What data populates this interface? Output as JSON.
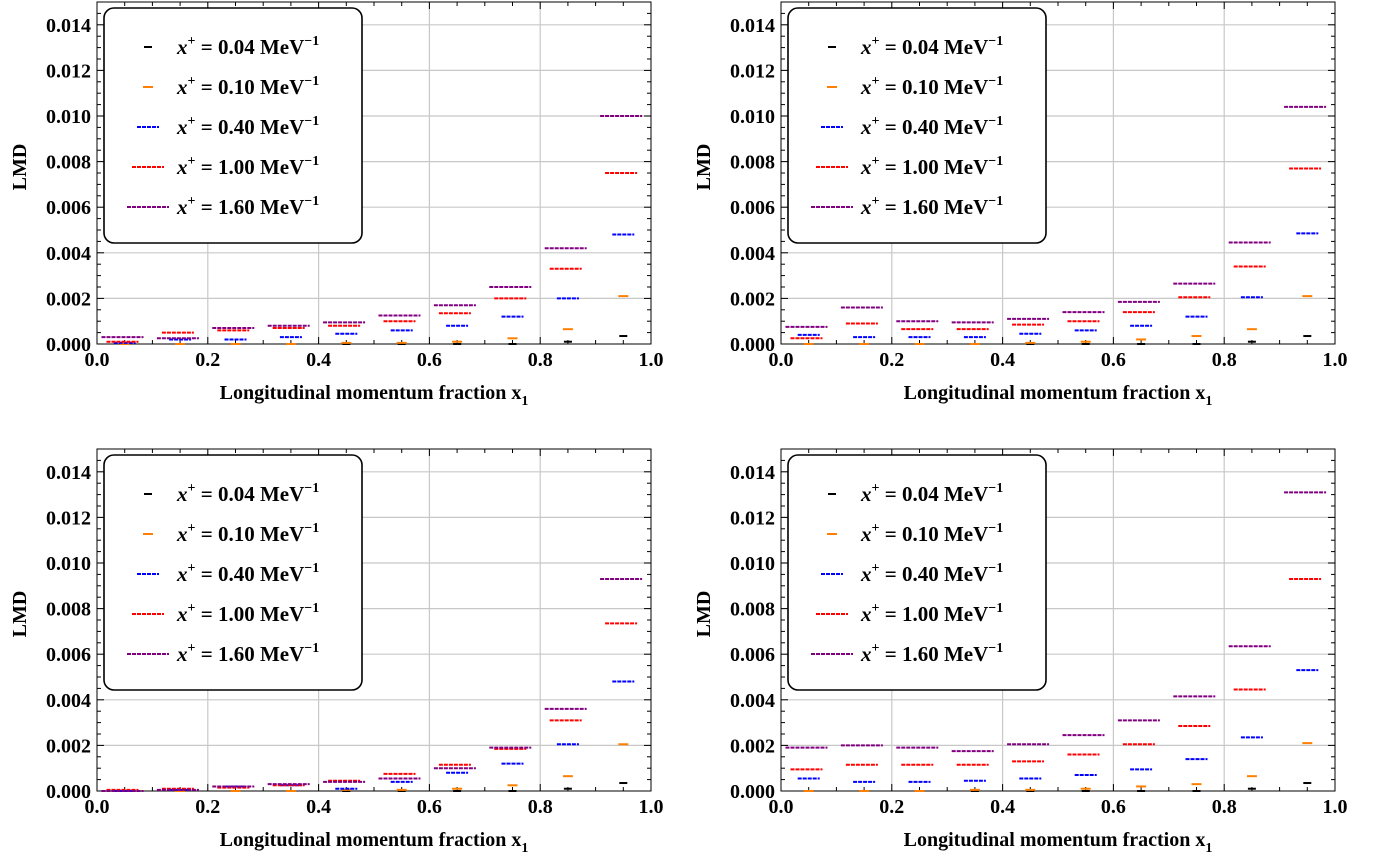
{
  "chart_data": [
    {
      "type": "scatter",
      "title": "",
      "xlabel": "Longitudinal momentum fraction x",
      "xlabel_sub": "1",
      "ylabel": "LMD",
      "xlim": [
        0,
        1
      ],
      "ylim": [
        0,
        0.015
      ],
      "xticks": [
        "0.0",
        "0.2",
        "0.4",
        "0.6",
        "0.8",
        "1.0"
      ],
      "yticks": [
        "0.000",
        "0.002",
        "0.004",
        "0.006",
        "0.008",
        "0.010",
        "0.012",
        "0.014"
      ],
      "grid": true,
      "legend_position": "top-left",
      "x": [
        0.05,
        0.15,
        0.25,
        0.35,
        0.45,
        0.55,
        0.65,
        0.75,
        0.85,
        0.95
      ],
      "series": [
        {
          "name": "x+ = 0.04 MeV-1",
          "color": "#000000",
          "values": [
            0.0,
            0.0,
            0.0,
            0.0,
            0.0,
            0.0,
            0.0,
            0.0,
            0.0001,
            0.00035
          ]
        },
        {
          "name": "x+ = 0.10 MeV-1",
          "color": "#ff8000",
          "values": [
            0.0,
            0.0,
            0.0,
            0.0,
            5e-05,
            5e-05,
            0.0001,
            0.00025,
            0.00065,
            0.0021
          ]
        },
        {
          "name": "x+ = 0.40 MeV-1",
          "color": "#0000ff",
          "values": [
            5e-05,
            0.0002,
            0.0002,
            0.0003,
            0.00045,
            0.0006,
            0.0008,
            0.0012,
            0.002,
            0.0048
          ]
        },
        {
          "name": "x+ = 1.00 MeV-1",
          "color": "#ff0000",
          "values": [
            0.0001,
            0.0005,
            0.0006,
            0.0007,
            0.0008,
            0.001,
            0.00135,
            0.002,
            0.0033,
            0.0075
          ]
        },
        {
          "name": "x+ = 1.60 MeV-1",
          "color": "#800080",
          "values": [
            0.0003,
            0.00025,
            0.0007,
            0.0008,
            0.00095,
            0.00125,
            0.0017,
            0.0025,
            0.0042,
            0.01
          ]
        }
      ]
    },
    {
      "type": "scatter",
      "title": "",
      "xlabel": "Longitudinal momentum fraction x",
      "xlabel_sub": "1",
      "ylabel": "LMD",
      "xlim": [
        0,
        1
      ],
      "ylim": [
        0,
        0.015
      ],
      "xticks": [
        "0.0",
        "0.2",
        "0.4",
        "0.6",
        "0.8",
        "1.0"
      ],
      "yticks": [
        "0.000",
        "0.002",
        "0.004",
        "0.006",
        "0.008",
        "0.010",
        "0.012",
        "0.014"
      ],
      "grid": true,
      "legend_position": "top-left",
      "x": [
        0.05,
        0.15,
        0.25,
        0.35,
        0.45,
        0.55,
        0.65,
        0.75,
        0.85,
        0.95
      ],
      "series": [
        {
          "name": "x+ = 0.04 MeV-1",
          "color": "#000000",
          "values": [
            0.0,
            0.0,
            0.0,
            0.0,
            0.0,
            0.0,
            0.0,
            0.0,
            0.0001,
            0.00035
          ]
        },
        {
          "name": "x+ = 0.10 MeV-1",
          "color": "#ff8000",
          "values": [
            0.0,
            0.0,
            0.0,
            0.0,
            5e-05,
            0.0001,
            0.0002,
            0.00035,
            0.00065,
            0.0021
          ]
        },
        {
          "name": "x+ = 0.40 MeV-1",
          "color": "#0000ff",
          "values": [
            0.0004,
            0.0003,
            0.0003,
            0.0003,
            0.00045,
            0.0006,
            0.0008,
            0.0012,
            0.00205,
            0.00485
          ]
        },
        {
          "name": "x+ = 1.00 MeV-1",
          "color": "#ff0000",
          "values": [
            0.00025,
            0.0009,
            0.00065,
            0.00065,
            0.00085,
            0.001,
            0.0014,
            0.00205,
            0.0034,
            0.0077
          ]
        },
        {
          "name": "x+ = 1.60 MeV-1",
          "color": "#800080",
          "values": [
            0.00075,
            0.0016,
            0.001,
            0.00095,
            0.0011,
            0.0014,
            0.00185,
            0.00265,
            0.00445,
            0.0104
          ]
        }
      ]
    },
    {
      "type": "scatter",
      "title": "",
      "xlabel": "Longitudinal momentum fraction x",
      "xlabel_sub": "1",
      "ylabel": "LMD",
      "xlim": [
        0,
        1
      ],
      "ylim": [
        0,
        0.015
      ],
      "xticks": [
        "0.0",
        "0.2",
        "0.4",
        "0.6",
        "0.8",
        "1.0"
      ],
      "yticks": [
        "0.000",
        "0.002",
        "0.004",
        "0.006",
        "0.008",
        "0.010",
        "0.012",
        "0.014"
      ],
      "grid": true,
      "legend_position": "top-left",
      "x": [
        0.05,
        0.15,
        0.25,
        0.35,
        0.45,
        0.55,
        0.65,
        0.75,
        0.85,
        0.95
      ],
      "series": [
        {
          "name": "x+ = 0.04 MeV-1",
          "color": "#000000",
          "values": [
            0.0,
            0.0,
            0.0,
            0.0,
            0.0,
            0.0,
            0.0,
            0.0,
            0.0001,
            0.00035
          ]
        },
        {
          "name": "x+ = 0.10 MeV-1",
          "color": "#ff8000",
          "values": [
            0.0,
            0.0,
            0.0,
            0.0,
            5e-05,
            5e-05,
            0.0001,
            0.00025,
            0.00065,
            0.00205
          ]
        },
        {
          "name": "x+ = 0.40 MeV-1",
          "color": "#0000ff",
          "values": [
            0.0,
            5e-05,
            0.0002,
            0.00025,
            0.0001,
            0.0004,
            0.0008,
            0.0012,
            0.00205,
            0.0048
          ]
        },
        {
          "name": "x+ = 1.00 MeV-1",
          "color": "#ff0000",
          "values": [
            5e-05,
            0.0001,
            0.00015,
            0.00025,
            0.00045,
            0.00075,
            0.00115,
            0.00185,
            0.0031,
            0.00735
          ]
        },
        {
          "name": "x+ = 1.60 MeV-1",
          "color": "#800080",
          "values": [
            0.0,
            5e-05,
            0.0002,
            0.0003,
            0.0004,
            0.00055,
            0.001,
            0.0019,
            0.0036,
            0.0093
          ]
        }
      ]
    },
    {
      "type": "scatter",
      "title": "",
      "xlabel": "Longitudinal momentum fraction x",
      "xlabel_sub": "1",
      "ylabel": "LMD",
      "xlim": [
        0,
        1
      ],
      "ylim": [
        0,
        0.015
      ],
      "xticks": [
        "0.0",
        "0.2",
        "0.4",
        "0.6",
        "0.8",
        "1.0"
      ],
      "yticks": [
        "0.000",
        "0.002",
        "0.004",
        "0.006",
        "0.008",
        "0.010",
        "0.012",
        "0.014"
      ],
      "grid": true,
      "legend_position": "top-left",
      "x": [
        0.05,
        0.15,
        0.25,
        0.35,
        0.45,
        0.55,
        0.65,
        0.75,
        0.85,
        0.95
      ],
      "series": [
        {
          "name": "x+ = 0.04 MeV-1",
          "color": "#000000",
          "values": [
            0.0,
            0.0,
            0.0,
            0.0,
            0.0,
            0.0,
            0.0,
            0.0,
            0.0001,
            0.00035
          ]
        },
        {
          "name": "x+ = 0.10 MeV-1",
          "color": "#ff8000",
          "values": [
            0.0,
            0.0,
            0.0,
            5e-05,
            5e-05,
            0.0001,
            0.0002,
            0.0003,
            0.00065,
            0.0021
          ]
        },
        {
          "name": "x+ = 0.40 MeV-1",
          "color": "#0000ff",
          "values": [
            0.00055,
            0.0004,
            0.0004,
            0.00045,
            0.00055,
            0.0007,
            0.00095,
            0.0014,
            0.00235,
            0.0053
          ]
        },
        {
          "name": "x+ = 1.00 MeV-1",
          "color": "#ff0000",
          "values": [
            0.00095,
            0.00115,
            0.00115,
            0.00115,
            0.0013,
            0.0016,
            0.00205,
            0.00285,
            0.00445,
            0.0093
          ]
        },
        {
          "name": "x+ = 1.60 MeV-1",
          "color": "#800080",
          "values": [
            0.0019,
            0.002,
            0.0019,
            0.00175,
            0.00205,
            0.00245,
            0.0031,
            0.00415,
            0.00635,
            0.0131
          ]
        }
      ]
    }
  ]
}
